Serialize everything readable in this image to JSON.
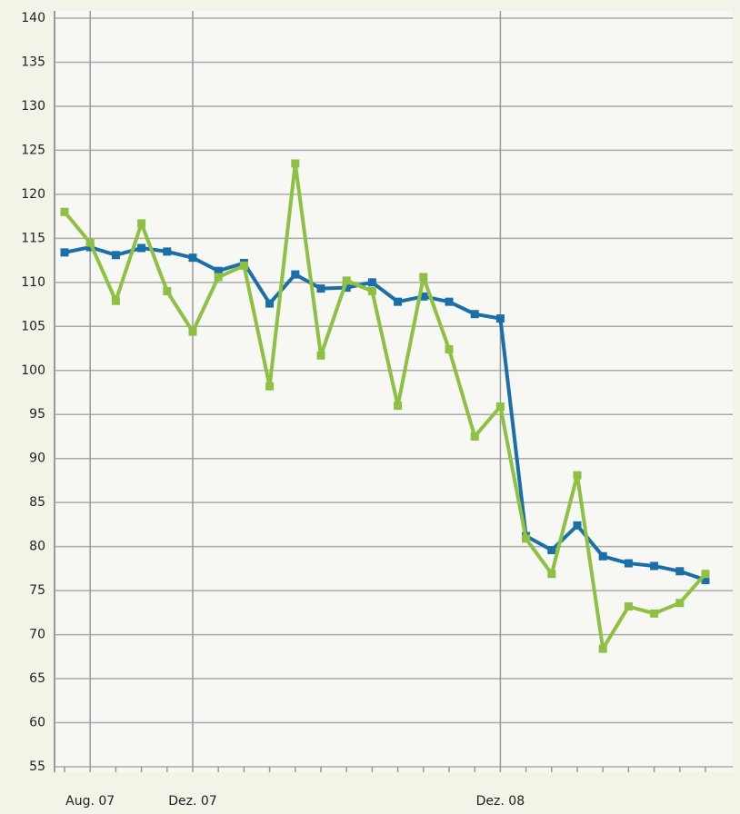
{
  "chart_data": {
    "type": "line",
    "categories": [
      null,
      "Aug. 07",
      null,
      null,
      null,
      "Dez. 07",
      null,
      null,
      null,
      null,
      null,
      null,
      null,
      null,
      null,
      null,
      null,
      "Dez. 08",
      null,
      null,
      null,
      null,
      null,
      null,
      null,
      null
    ],
    "series": [
      {
        "color": "#1a6fa8",
        "values": [
          113.4,
          114.0,
          113.1,
          113.9,
          113.5,
          112.8,
          111.3,
          112.2,
          107.6,
          110.9,
          109.3,
          109.4,
          110.0,
          107.8,
          108.4,
          107.8,
          106.4,
          105.9,
          81.2,
          79.6,
          82.4,
          78.9,
          78.1,
          77.8,
          77.2,
          76.2
        ]
      },
      {
        "color": "#8dc043",
        "values": [
          118.0,
          114.5,
          107.9,
          116.7,
          109.0,
          104.4,
          110.6,
          111.9,
          98.2,
          123.5,
          101.7,
          110.2,
          109.0,
          96.0,
          110.6,
          102.4,
          92.5,
          95.9,
          80.9,
          76.9,
          88.1,
          68.4,
          73.2,
          72.4,
          73.6,
          76.9
        ]
      }
    ],
    "ylim": [
      55,
      140
    ],
    "yticks": [
      55,
      60,
      65,
      70,
      75,
      80,
      85,
      90,
      95,
      100,
      105,
      110,
      115,
      120,
      125,
      130,
      135,
      140
    ],
    "grid": true
  }
}
